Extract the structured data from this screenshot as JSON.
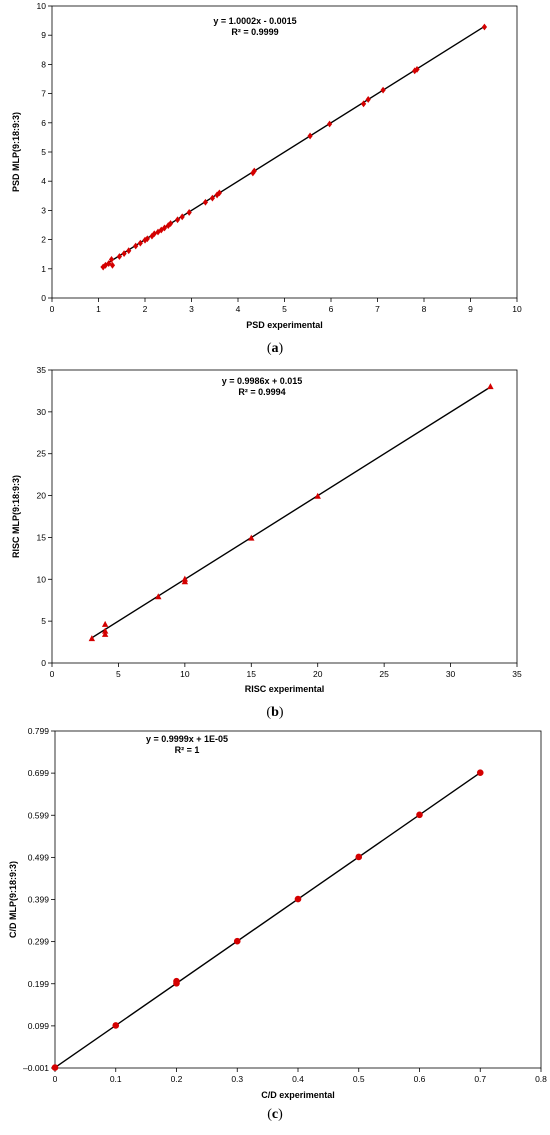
{
  "chart_data": [
    {
      "type": "scatter",
      "panel": "(a)",
      "caption_letter": "a",
      "xlabel": "PSD experimental",
      "ylabel": "PSD MLP(9:18:9:3)",
      "xlim": [
        0,
        10
      ],
      "ylim": [
        0,
        10
      ],
      "xticks": [
        "0",
        "1",
        "2",
        "3",
        "4",
        "5",
        "6",
        "7",
        "8",
        "9",
        "10"
      ],
      "yticks": [
        "0",
        "1",
        "2",
        "3",
        "4",
        "5",
        "6",
        "7",
        "8",
        "9",
        "10"
      ],
      "grid": false,
      "marker": "diamond",
      "color": "#d40000",
      "trend_color": "#000000",
      "equation": "y = 1.0002x - 0.0015",
      "r2": "R² = 0.9999",
      "trendline": {
        "slope": 1.0002,
        "intercept": -0.0015,
        "x_range": [
          1.05,
          9.3
        ]
      },
      "points": [
        {
          "x": 1.1,
          "y": 1.06
        },
        {
          "x": 1.15,
          "y": 1.12
        },
        {
          "x": 1.22,
          "y": 1.18
        },
        {
          "x": 1.28,
          "y": 1.32
        },
        {
          "x": 1.3,
          "y": 1.12
        },
        {
          "x": 1.45,
          "y": 1.42
        },
        {
          "x": 1.55,
          "y": 1.52
        },
        {
          "x": 1.65,
          "y": 1.62
        },
        {
          "x": 1.8,
          "y": 1.78
        },
        {
          "x": 1.9,
          "y": 1.88
        },
        {
          "x": 2.0,
          "y": 1.98
        },
        {
          "x": 2.05,
          "y": 2.03
        },
        {
          "x": 2.15,
          "y": 2.12
        },
        {
          "x": 2.2,
          "y": 2.2
        },
        {
          "x": 2.28,
          "y": 2.26
        },
        {
          "x": 2.35,
          "y": 2.33
        },
        {
          "x": 2.42,
          "y": 2.4
        },
        {
          "x": 2.5,
          "y": 2.48
        },
        {
          "x": 2.55,
          "y": 2.55
        },
        {
          "x": 2.7,
          "y": 2.68
        },
        {
          "x": 2.8,
          "y": 2.78
        },
        {
          "x": 2.95,
          "y": 2.93
        },
        {
          "x": 3.3,
          "y": 3.28
        },
        {
          "x": 3.45,
          "y": 3.42
        },
        {
          "x": 3.55,
          "y": 3.53
        },
        {
          "x": 3.6,
          "y": 3.6
        },
        {
          "x": 4.32,
          "y": 4.28
        },
        {
          "x": 4.35,
          "y": 4.35
        },
        {
          "x": 5.55,
          "y": 5.55
        },
        {
          "x": 5.97,
          "y": 5.96
        },
        {
          "x": 6.7,
          "y": 6.65
        },
        {
          "x": 6.8,
          "y": 6.8
        },
        {
          "x": 7.12,
          "y": 7.12
        },
        {
          "x": 7.8,
          "y": 7.78
        },
        {
          "x": 7.85,
          "y": 7.83
        },
        {
          "x": 9.3,
          "y": 9.28
        }
      ]
    },
    {
      "type": "scatter",
      "panel": "(b)",
      "caption_letter": "b",
      "xlabel": "RISC experimental",
      "ylabel": "RISC MLP(9:18:9:3)",
      "xlim": [
        0,
        35
      ],
      "ylim": [
        0,
        35
      ],
      "xticks": [
        "0",
        "5",
        "10",
        "15",
        "20",
        "25",
        "30",
        "35"
      ],
      "yticks": [
        "0",
        "5",
        "10",
        "15",
        "20",
        "25",
        "30",
        "35"
      ],
      "grid": false,
      "marker": "triangle",
      "color": "#d40000",
      "trend_color": "#000000",
      "equation": "y = 0.9986x + 0.015",
      "r2": "R² = 0.9994",
      "trendline": {
        "slope": 0.9986,
        "intercept": 0.015,
        "x_range": [
          3,
          33
        ]
      },
      "points": [
        {
          "x": 3,
          "y": 2.9
        },
        {
          "x": 4,
          "y": 3.4
        },
        {
          "x": 4,
          "y": 3.8
        },
        {
          "x": 4,
          "y": 4.6
        },
        {
          "x": 8,
          "y": 7.9
        },
        {
          "x": 10,
          "y": 9.7
        },
        {
          "x": 10,
          "y": 10.0
        },
        {
          "x": 15,
          "y": 14.9
        },
        {
          "x": 20,
          "y": 19.9
        },
        {
          "x": 33,
          "y": 33.0
        }
      ]
    },
    {
      "type": "scatter",
      "panel": "(c)",
      "caption_letter": "c",
      "xlabel": "C/D experimental",
      "ylabel": "C/D MLP(9:18:9:3)",
      "xlim": [
        0,
        0.8
      ],
      "ylim": [
        -0.001,
        0.799
      ],
      "xticks": [
        "0",
        "0.1",
        "0.2",
        "0.3",
        "0.4",
        "0.5",
        "0.6",
        "0.7",
        "0.8"
      ],
      "yticks": [
        "–0.001",
        "0.099",
        "0.199",
        "0.299",
        "0.399",
        "0.499",
        "0.599",
        "0.699",
        "0.799"
      ],
      "grid": false,
      "marker": "circle",
      "color": "#d40000",
      "trend_color": "#000000",
      "equation": "y = 0.9999x  + 1E-05",
      "r2": "R² = 1",
      "trendline": {
        "slope": 0.9999,
        "intercept": 1e-05,
        "x_range": [
          0,
          0.7
        ]
      },
      "points": [
        {
          "x": 0,
          "y": 0
        },
        {
          "x": 0.1,
          "y": 0.1
        },
        {
          "x": 0.2,
          "y": 0.2
        },
        {
          "x": 0.2,
          "y": 0.205
        },
        {
          "x": 0.3,
          "y": 0.3
        },
        {
          "x": 0.4,
          "y": 0.4
        },
        {
          "x": 0.5,
          "y": 0.5
        },
        {
          "x": 0.6,
          "y": 0.6
        },
        {
          "x": 0.7,
          "y": 0.7
        }
      ]
    }
  ]
}
